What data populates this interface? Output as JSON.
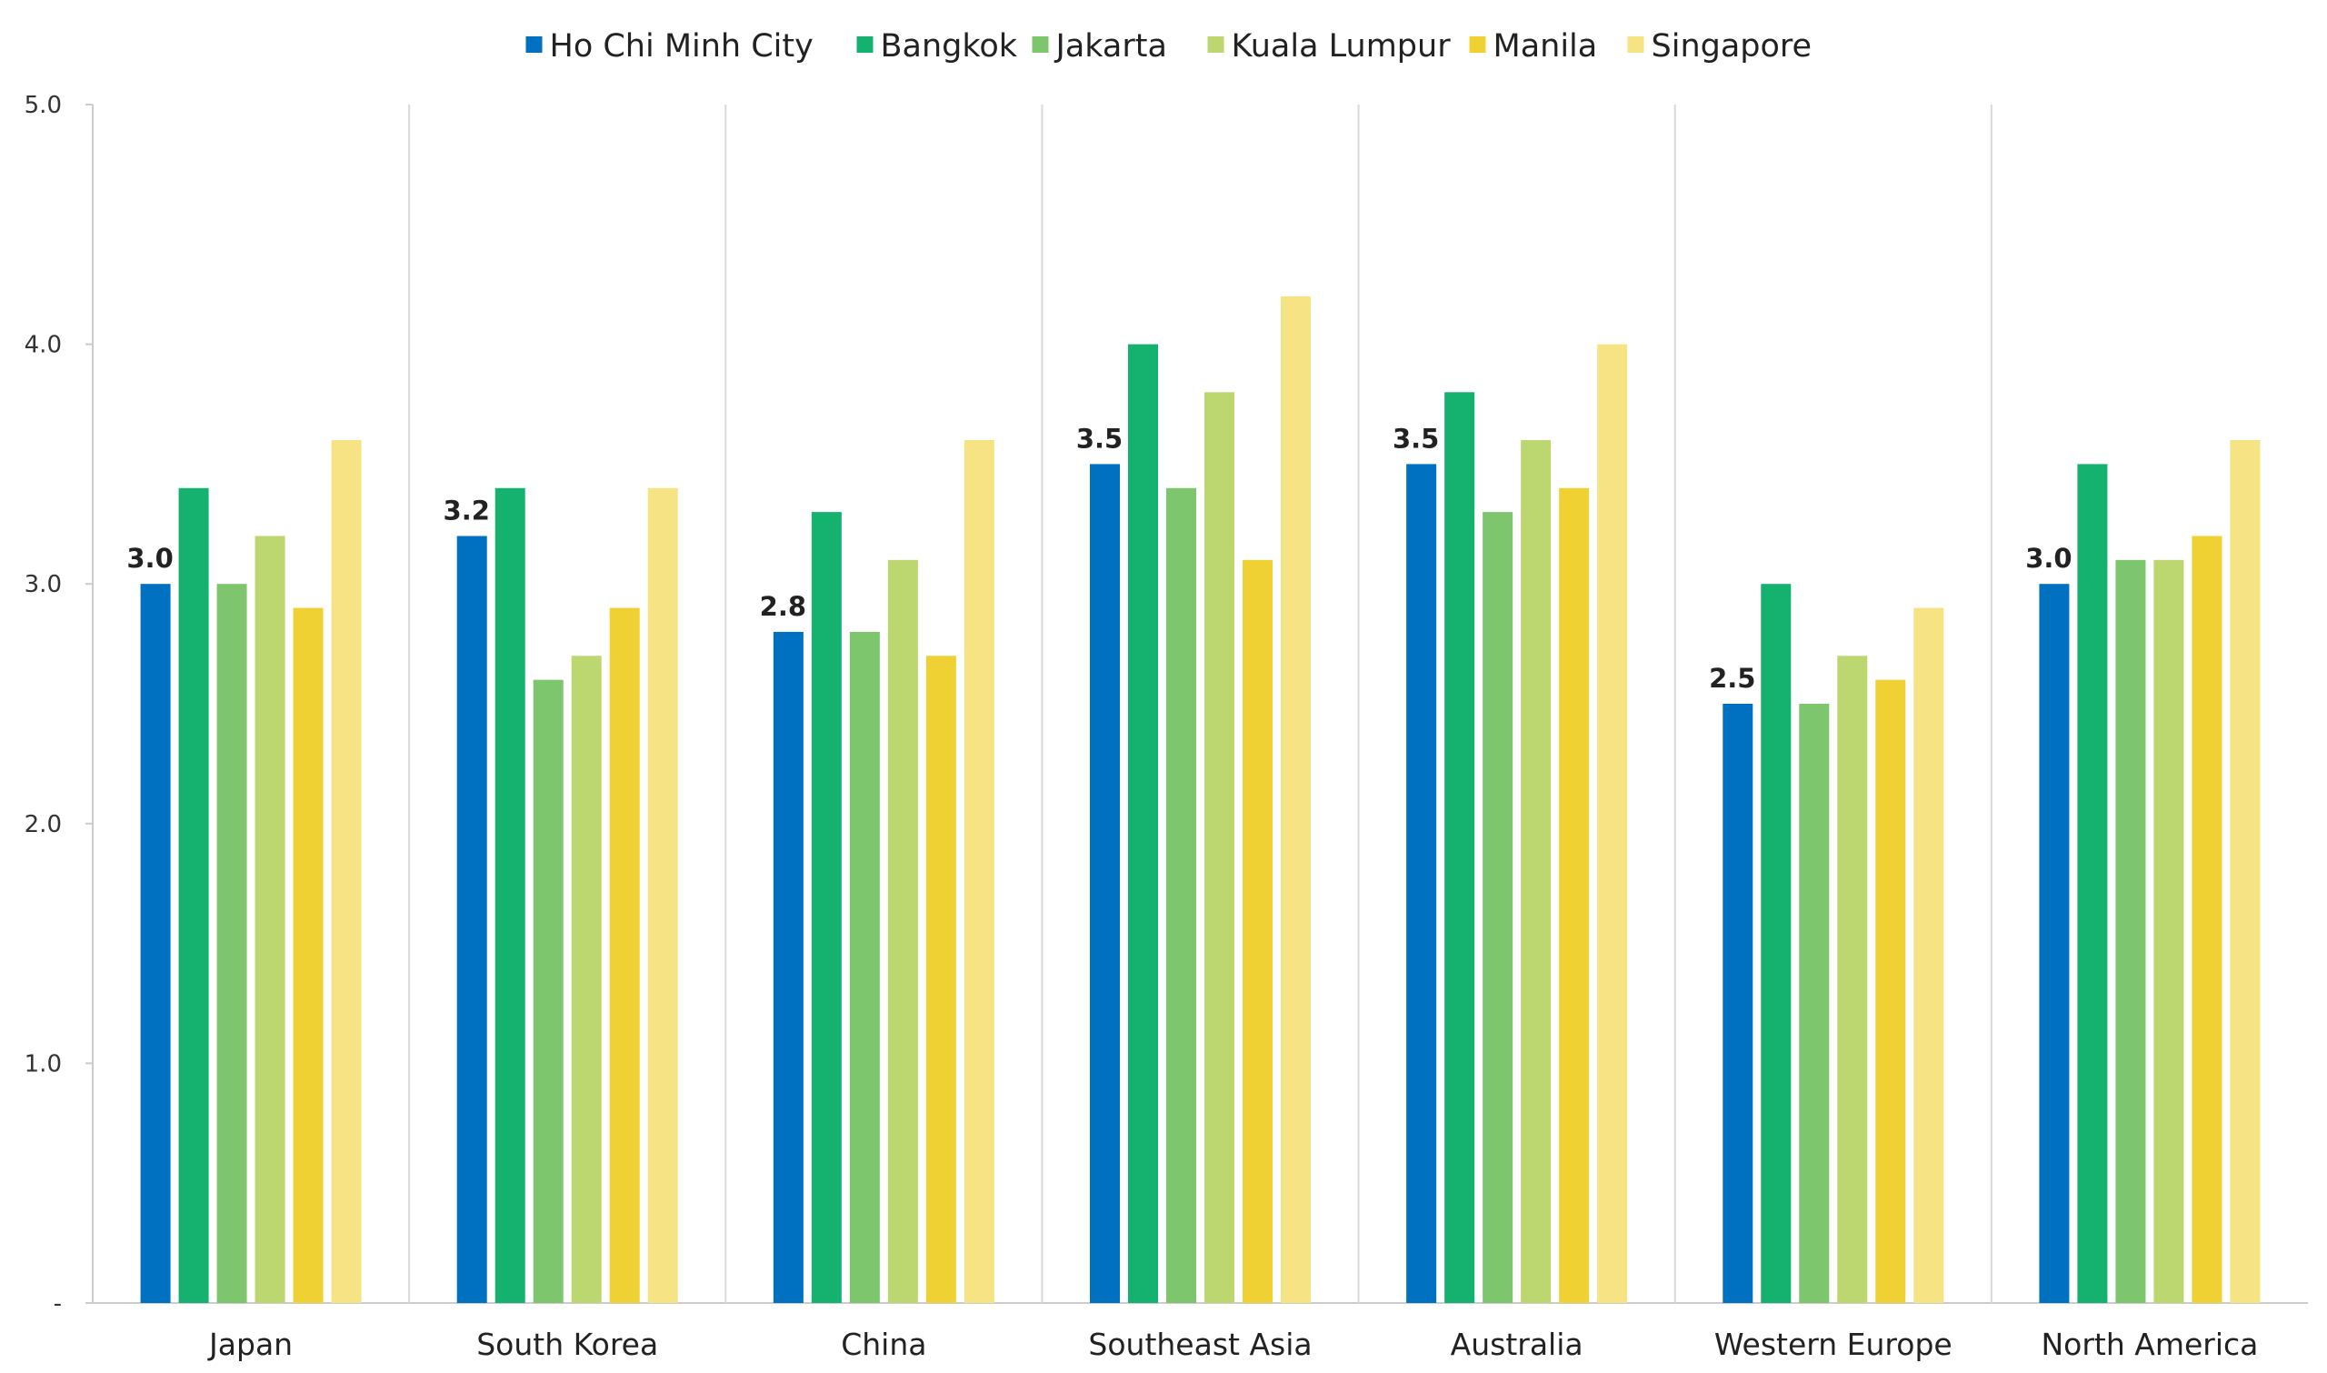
{
  "chart_data": {
    "type": "bar",
    "title": "",
    "xlabel": "",
    "ylabel": "",
    "ylim": [
      0,
      5.0
    ],
    "yticks": [
      "-",
      "1.0",
      "2.0",
      "3.0",
      "4.0",
      "5.0"
    ],
    "grid": false,
    "legend_position": "top",
    "categories": [
      "Japan",
      "South Korea",
      "China",
      "Southeast Asia",
      "Australia",
      "Western Europe",
      "North America"
    ],
    "series": [
      {
        "name": "Ho Chi Minh City",
        "color": "#0070C0",
        "values": [
          3.0,
          3.2,
          2.8,
          3.5,
          3.5,
          2.5,
          3.0
        ],
        "data_labels": [
          "3.0",
          "3.2",
          "2.8",
          "3.5",
          "3.5",
          "2.5",
          "3.0"
        ]
      },
      {
        "name": "Bangkok",
        "color": "#14B26E",
        "values": [
          3.4,
          3.4,
          3.3,
          4.0,
          3.8,
          3.0,
          3.5
        ]
      },
      {
        "name": "Jakarta",
        "color": "#7DC66D",
        "values": [
          3.0,
          2.6,
          2.8,
          3.4,
          3.3,
          2.5,
          3.1
        ]
      },
      {
        "name": "Kuala Lumpur",
        "color": "#BDD770",
        "values": [
          3.2,
          2.7,
          3.1,
          3.8,
          3.6,
          2.7,
          3.1
        ]
      },
      {
        "name": "Manila",
        "color": "#F0D134",
        "values": [
          2.9,
          2.9,
          2.7,
          3.1,
          3.4,
          2.6,
          3.2
        ]
      },
      {
        "name": "Singapore",
        "color": "#F5E384",
        "values": [
          3.6,
          3.4,
          3.6,
          4.2,
          4.0,
          2.9,
          3.6
        ]
      }
    ]
  }
}
